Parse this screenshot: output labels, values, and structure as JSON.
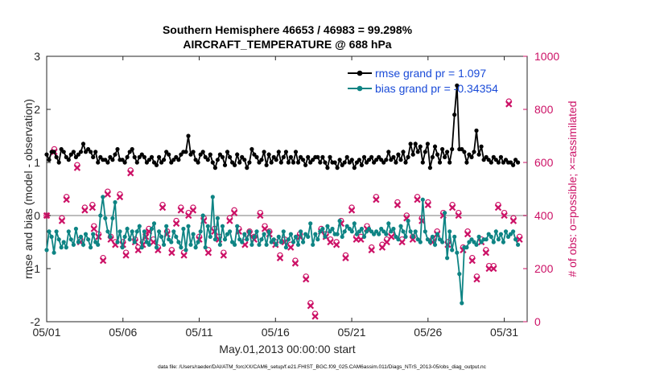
{
  "chart_data": {
    "type": "line",
    "title": [
      "Southern Hemisphere 46653 / 46983 = 99.298%",
      "AIRCRAFT_TEMPERATURE @ 688 hPa"
    ],
    "xlabel": "May.01,2013 00:00:00 start",
    "ylabel_left": "rmse and bias (model - observation)",
    "ylabel_right": "# of obs: o=possible; ×=assimilated",
    "footnote": "data file: /Users/raeder/DAI/ATM_forcXX/CAM6_setup/f.e21.FHIST_BGC.f09_025.CAM6assim.011/Diags_NTrS_2013-05/obs_diag_output.nc",
    "xlim": [
      1,
      32.5
    ],
    "ylim_left": [
      -2,
      3
    ],
    "ylim_right": [
      0,
      1000
    ],
    "xticks": [
      1,
      6,
      11,
      16,
      21,
      26,
      31
    ],
    "xtick_labels": [
      "05/01",
      "05/06",
      "05/11",
      "05/16",
      "05/21",
      "05/26",
      "05/31"
    ],
    "yticks_left": [
      "-2",
      "-1",
      "0",
      "1",
      "2",
      "3"
    ],
    "yticks_right": [
      "0",
      "200",
      "400",
      "600",
      "800",
      "1000"
    ],
    "series": [
      {
        "name": "rmse grand pr = 1.097",
        "color": "#000000",
        "values": [
          1.15,
          1.05,
          1.2,
          1.2,
          1.1,
          1.0,
          1.25,
          1.2,
          1.1,
          1.05,
          1.15,
          1.2,
          1.1,
          1.15,
          1.2,
          1.35,
          1.2,
          1.25,
          1.2,
          1.1,
          1.2,
          1.0,
          1.1,
          1.05,
          1.05,
          1.0,
          1.1,
          1.05,
          1.15,
          1.25,
          1.05,
          1.05,
          1.0,
          1.1,
          1.2,
          1.25,
          1.1,
          1.0,
          1.1,
          1.15,
          1.1,
          1.0,
          1.05,
          1.1,
          1.0,
          0.95,
          1.1,
          1.0,
          1.05,
          1.2,
          1.15,
          1.0,
          1.05,
          1.1,
          1.05,
          1.15,
          1.2,
          1.2,
          1.5,
          1.15,
          1.2,
          1.05,
          1.0,
          1.15,
          1.2,
          1.1,
          1.05,
          1.15,
          1.0,
          0.9,
          1.05,
          1.15,
          1.1,
          0.95,
          1.2,
          1.1,
          1.0,
          0.95,
          1.15,
          1.0,
          1.1,
          1.05,
          0.9,
          1.0,
          1.25,
          1.15,
          1.1,
          1.0,
          1.05,
          1.2,
          0.95,
          1.15,
          1.0,
          1.1,
          1.05,
          1.2,
          1.0,
          1.1,
          1.2,
          1.0,
          1.1,
          1.0,
          1.2,
          1.0,
          1.1,
          1.05,
          0.95,
          1.1,
          1.0,
          1.05,
          1.1,
          1.1,
          1.0,
          1.1,
          1.0,
          0.9,
          1.1,
          1.0,
          1.0,
          0.9,
          1.05,
          0.95,
          1.0,
          1.1,
          1.0,
          1.05,
          0.9,
          1.0,
          1.05,
          0.95,
          1.1,
          1.0,
          1.05,
          1.1,
          1.0,
          1.05,
          1.1,
          1.05,
          1.0,
          1.05,
          1.2,
          1.05,
          1.1,
          1.0,
          1.15,
          1.05,
          1.2,
          1.0,
          1.1,
          1.35,
          1.15,
          1.35,
          1.2,
          1.3,
          1.0,
          1.2,
          1.35,
          0.9,
          1.1,
          1.3,
          1.15,
          1.0,
          1.25,
          1.1,
          1.2,
          1.0,
          1.25,
          1.9,
          2.45,
          1.25,
          1.25,
          1.2,
          1.0,
          1.15,
          1.1,
          1.2,
          1.6,
          1.15,
          1.3,
          1.05,
          1.1,
          1.05,
          1.0,
          1.1,
          1.05,
          1.0,
          1.1,
          1.0,
          1.05,
          1.0,
          1.0,
          0.95,
          1.05,
          1.0
        ]
      },
      {
        "name": "bias grand pr = -0.34354",
        "color": "#0e8484",
        "values": [
          -0.65,
          -0.3,
          -0.4,
          -0.7,
          -0.3,
          -0.45,
          -0.6,
          -0.5,
          -0.6,
          -0.3,
          -0.45,
          -0.55,
          -0.25,
          -0.5,
          -0.4,
          -0.55,
          -0.35,
          -0.45,
          -0.6,
          -0.35,
          -0.5,
          -0.55,
          0.0,
          0.35,
          -0.05,
          -0.3,
          -0.4,
          -0.05,
          0.25,
          -0.5,
          -0.3,
          -0.6,
          -0.4,
          -0.25,
          -0.45,
          -0.3,
          -0.5,
          -0.3,
          -0.2,
          -0.6,
          -0.3,
          -0.5,
          -0.55,
          -0.25,
          -0.15,
          -0.6,
          -0.3,
          -0.4,
          -0.55,
          -0.2,
          -0.45,
          -0.5,
          -0.3,
          -0.4,
          -0.5,
          -0.6,
          -0.25,
          -0.65,
          -0.2,
          -0.55,
          -0.35,
          -0.6,
          -0.5,
          -0.3,
          0.0,
          -0.6,
          -0.2,
          -0.4,
          0.35,
          -0.45,
          -0.05,
          -0.55,
          -0.2,
          -0.45,
          -0.35,
          -0.3,
          -0.5,
          -0.55,
          -0.2,
          -0.45,
          -0.5,
          -0.35,
          -0.45,
          -0.3,
          -0.55,
          -0.4,
          -0.3,
          -0.55,
          -0.45,
          -0.35,
          -0.55,
          -0.3,
          -0.5,
          -0.45,
          -0.55,
          -0.4,
          -0.5,
          -0.3,
          -0.6,
          -0.45,
          -0.35,
          -0.5,
          -0.4,
          -0.55,
          -0.3,
          -0.5,
          -0.35,
          -0.4,
          -0.15,
          -0.55,
          -0.35,
          -0.45,
          -0.3,
          -0.25,
          -0.4,
          -0.2,
          -0.3,
          -0.25,
          -0.35,
          -0.35,
          -0.1,
          -0.4,
          -0.3,
          -0.2,
          -0.25,
          -0.3,
          -0.15,
          -0.35,
          -0.3,
          -0.25,
          -0.4,
          -0.3,
          -0.25,
          -0.3,
          -0.35,
          -0.3,
          -0.35,
          -0.25,
          -0.3,
          -0.35,
          -0.15,
          -0.3,
          -0.25,
          -0.4,
          -0.45,
          -0.2,
          -0.3,
          -0.4,
          -0.1,
          -0.3,
          -0.4,
          -0.3,
          -0.45,
          -0.5,
          0.3,
          -0.3,
          -0.45,
          -0.5,
          -0.4,
          -0.55,
          -0.35,
          -0.45,
          -0.5,
          0.05,
          -0.8,
          -0.3,
          -0.65,
          -0.4,
          -0.7,
          -1.1,
          -1.65,
          -0.6,
          -0.6,
          -0.5,
          -0.45,
          -0.5,
          -0.55,
          -0.4,
          -0.5,
          -0.45,
          -0.45,
          -0.35,
          -0.4,
          -0.5,
          -0.3,
          -0.45,
          -0.35,
          -0.5,
          -0.3,
          -0.4,
          -0.35,
          -0.3,
          -0.45,
          -0.55
        ]
      }
    ],
    "obs_counts": {
      "x": [
        1,
        1.5,
        2,
        2.3,
        3,
        3.2,
        3.5,
        4,
        4.1,
        4.4,
        4.7,
        5,
        5.2,
        5.5,
        5.8,
        6,
        6.2,
        6.5,
        6.8,
        7,
        7.3,
        7.5,
        7.7,
        8,
        8.3,
        8.6,
        8.9,
        9.2,
        9.5,
        9.8,
        10,
        10.3,
        10.6,
        11,
        11.3,
        11.6,
        12,
        12.3,
        12.6,
        13,
        13.3,
        13.6,
        14,
        14.3,
        14.6,
        15,
        15.3,
        15.6,
        16,
        16.3,
        16.6,
        17,
        17.3,
        17.6,
        18,
        18.3,
        18.6,
        19,
        19.3,
        19.6,
        20,
        20.3,
        20.6,
        21,
        21.3,
        21.6,
        22,
        22.3,
        22.6,
        23,
        23.3,
        23.6,
        24,
        24.3,
        24.6,
        25,
        25.3,
        25.6,
        26,
        26.3,
        26.6,
        27,
        27.3,
        27.6,
        28,
        28.3,
        28.6,
        28.9,
        29.2,
        29.5,
        29.8,
        30,
        30.3,
        30.6,
        31,
        31.3,
        31.6,
        32
      ],
      "assimilated": [
        400,
        640,
        380,
        460,
        580,
        300,
        420,
        430,
        350,
        320,
        230,
        480,
        310,
        290,
        470,
        290,
        250,
        560,
        300,
        270,
        290,
        320,
        340,
        300,
        270,
        430,
        330,
        260,
        370,
        420,
        250,
        400,
        420,
        310,
        380,
        260,
        340,
        310,
        250,
        380,
        410,
        340,
        290,
        330,
        310,
        400,
        350,
        330,
        290,
        240,
        300,
        280,
        220,
        320,
        160,
        60,
        20,
        340,
        320,
        300,
        290,
        370,
        240,
        420,
        310,
        310,
        350,
        270,
        460,
        280,
        300,
        320,
        440,
        300,
        390,
        310,
        460,
        380,
        440,
        300,
        330,
        400,
        290,
        430,
        400,
        270,
        330,
        230,
        160,
        300,
        260,
        200,
        200,
        430,
        400,
        820,
        380,
        310,
        0
      ],
      "possible": [
        400,
        650,
        390,
        470,
        590,
        310,
        430,
        440,
        360,
        330,
        240,
        490,
        320,
        300,
        480,
        300,
        260,
        570,
        310,
        280,
        300,
        330,
        350,
        310,
        280,
        440,
        340,
        270,
        380,
        430,
        260,
        410,
        430,
        320,
        390,
        270,
        350,
        320,
        260,
        390,
        420,
        350,
        300,
        340,
        320,
        410,
        360,
        340,
        300,
        250,
        310,
        290,
        230,
        330,
        170,
        70,
        30,
        350,
        330,
        310,
        300,
        380,
        250,
        430,
        320,
        320,
        360,
        280,
        470,
        290,
        310,
        330,
        450,
        310,
        400,
        320,
        470,
        390,
        450,
        310,
        340,
        410,
        300,
        440,
        410,
        280,
        340,
        240,
        170,
        310,
        270,
        210,
        210,
        440,
        410,
        830,
        390,
        320,
        0
      ]
    }
  }
}
